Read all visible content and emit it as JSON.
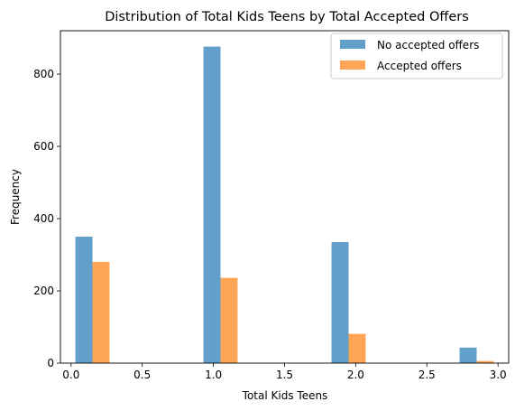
{
  "chart_data": {
    "type": "bar",
    "title": "Distribution of Total Kids Teens by Total Accepted Offers",
    "xlabel": "Total Kids Teens",
    "ylabel": "Frequency",
    "xlim": [
      -0.075,
      3.075
    ],
    "ylim": [
      0,
      920
    ],
    "xticks": [
      "0.0",
      "0.5",
      "1.0",
      "1.5",
      "2.0",
      "2.5",
      "3.0"
    ],
    "yticks": [
      "0",
      "200",
      "400",
      "600",
      "800"
    ],
    "legend_position": "top-right",
    "series": [
      {
        "name": "No accepted offers",
        "color": "#1f77b4",
        "opacity": 0.7,
        "bins": [
          {
            "start": 0.03,
            "end": 0.15,
            "value": 350
          },
          {
            "start": 0.93,
            "end": 1.05,
            "value": 876
          },
          {
            "start": 1.83,
            "end": 1.95,
            "value": 335
          },
          {
            "start": 2.73,
            "end": 2.85,
            "value": 43
          }
        ]
      },
      {
        "name": "Accepted offers",
        "color": "#ff7f0e",
        "opacity": 0.7,
        "bins": [
          {
            "start": 0.15,
            "end": 0.27,
            "value": 280
          },
          {
            "start": 1.05,
            "end": 1.17,
            "value": 236
          },
          {
            "start": 1.95,
            "end": 2.07,
            "value": 81
          },
          {
            "start": 2.85,
            "end": 2.97,
            "value": 6
          }
        ]
      }
    ]
  }
}
